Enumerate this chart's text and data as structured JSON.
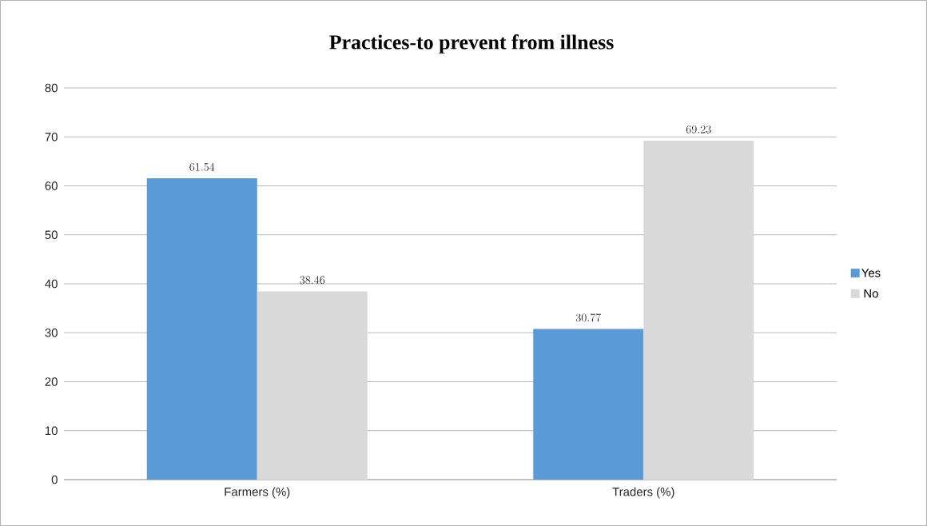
{
  "chart_data": {
    "type": "bar",
    "title": "Practices-to prevent from illness",
    "categories": [
      "Farmers (%)",
      "Traders (%)"
    ],
    "series": [
      {
        "name": "Yes",
        "color": "#5b9bd5",
        "values": [
          61.54,
          30.77
        ]
      },
      {
        "name": "No",
        "color": "#d9d9d9",
        "values": [
          38.46,
          69.23
        ]
      }
    ],
    "ylim": [
      0,
      80
    ],
    "yticks": [
      0,
      10,
      20,
      30,
      40,
      50,
      60,
      70,
      80
    ],
    "grid": "y",
    "legend": "right",
    "data_labels": true
  }
}
